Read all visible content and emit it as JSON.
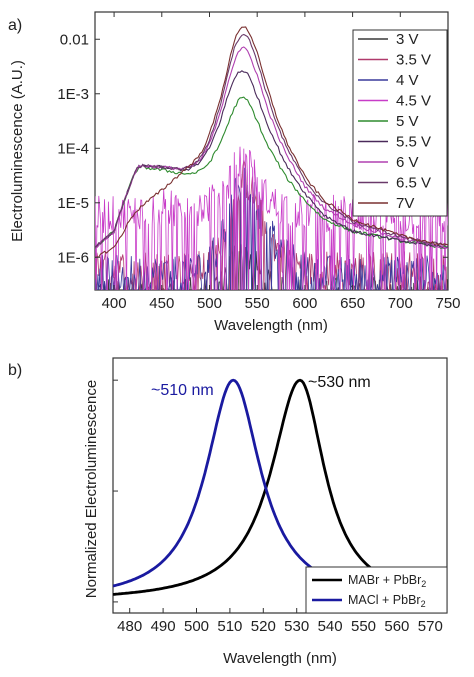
{
  "chart_data": [
    {
      "panel": "a)",
      "type": "line",
      "xlabel": "Wavelength (nm)",
      "ylabel": "Electroluminescence (A.U.)",
      "xlim": [
        380,
        750
      ],
      "yscale": "log",
      "ylim_log10": [
        -6.6,
        -1.5
      ],
      "x_ticks": [
        "400",
        "450",
        "500",
        "550",
        "600",
        "650",
        "700",
        "750"
      ],
      "y_ticks": [
        {
          "label": "0.01",
          "value": 0.01
        },
        {
          "label": "1E-3",
          "value": 0.001
        },
        {
          "label": "1E-4",
          "value": 0.0001
        },
        {
          "label": "1E-5",
          "value": 1e-05
        },
        {
          "label": "1E-6",
          "value": 1e-06
        }
      ],
      "legend_position": "top-right",
      "x": [
        380,
        400,
        410,
        420,
        425,
        430,
        450,
        470,
        480,
        490,
        500,
        510,
        520,
        525,
        530,
        535,
        540,
        545,
        550,
        560,
        570,
        580,
        600,
        620,
        650,
        700,
        750
      ],
      "series": [
        {
          "name": "3 V",
          "color": "#3a3a3a",
          "noisy": true,
          "noise_floor": 2e-07,
          "values": [
            2e-07,
            2e-07,
            2e-07,
            2e-07,
            2e-07,
            2e-07,
            2e-07,
            2e-07,
            2e-07,
            2e-07,
            2e-07,
            3e-07,
            6e-07,
            9e-07,
            1.3e-06,
            1.5e-06,
            1.3e-06,
            9e-07,
            6e-07,
            3e-07,
            2e-07,
            2e-07,
            2e-07,
            2e-07,
            2e-07,
            2e-07,
            2e-07
          ]
        },
        {
          "name": "3.5 V",
          "color": "#b03a6c",
          "noisy": true,
          "noise_floor": 6e-07,
          "values": [
            6e-07,
            6e-07,
            6e-07,
            6e-07,
            6e-07,
            6e-07,
            6e-07,
            6e-07,
            6e-07,
            6e-07,
            8e-07,
            1.5e-06,
            4e-06,
            1e-05,
            2.2e-05,
            3e-05,
            2.4e-05,
            1.5e-05,
            8e-06,
            3e-06,
            1.5e-06,
            1e-06,
            6e-07,
            6e-07,
            6e-07,
            6e-07,
            6e-07
          ]
        },
        {
          "name": "4 V",
          "color": "#3a3a9c",
          "noisy": true,
          "noise_floor": 5e-07,
          "values": [
            5e-07,
            5e-07,
            5e-07,
            5e-07,
            5e-07,
            5e-07,
            5e-07,
            5e-07,
            5e-07,
            6e-07,
            8e-07,
            1.6e-06,
            4.5e-06,
            1.1e-05,
            2.4e-05,
            3.2e-05,
            2.6e-05,
            1.6e-05,
            9e-06,
            3.2e-06,
            1.6e-06,
            1e-06,
            6e-07,
            5e-07,
            5e-07,
            5e-07,
            5e-07
          ]
        },
        {
          "name": "4.5 V",
          "color": "#c83cc8",
          "noisy": true,
          "noise_floor": 6e-06,
          "values": [
            6e-06,
            6e-06,
            6e-06,
            6.5e-06,
            7e-06,
            7.5e-06,
            8e-06,
            8e-06,
            8e-06,
            8.5e-06,
            9.5e-06,
            1.3e-05,
            2.4e-05,
            3.6e-05,
            5.2e-05,
            6e-05,
            5.2e-05,
            3.6e-05,
            2.3e-05,
            1.2e-05,
            9e-06,
            8e-06,
            7e-06,
            6.5e-06,
            6e-06,
            5.5e-06,
            5.5e-06
          ]
        },
        {
          "name": "5 V",
          "color": "#2e8b2e",
          "noisy": false,
          "values": [
            1.5e-06,
            3e-06,
            1e-05,
            3e-05,
            4.3e-05,
            4.5e-05,
            4e-05,
            3.5e-05,
            3.4e-05,
            3.8e-05,
            5.5e-05,
            0.00011,
            0.0003,
            0.0005,
            0.00075,
            0.00085,
            0.00075,
            0.0005,
            0.00032,
            0.00012,
            6e-05,
            3e-05,
            1.1e-05,
            5e-06,
            3e-06,
            2e-06,
            1.5e-06
          ]
        },
        {
          "name": "5.5 V",
          "color": "#4a2a5a",
          "noisy": false,
          "values": [
            1.5e-06,
            3e-06,
            1e-05,
            3e-05,
            4.5e-05,
            4.8e-05,
            4.5e-05,
            4.1e-05,
            4.2e-05,
            5.5e-05,
            0.0001,
            0.00027,
            0.001,
            0.0017,
            0.0025,
            0.0027,
            0.0023,
            0.0015,
            0.0009,
            0.0003,
            0.00012,
            5e-05,
            1.5e-05,
            6e-06,
            3e-06,
            2e-06,
            1.5e-06
          ]
        },
        {
          "name": "6 V",
          "color": "#b040b0",
          "noisy": false,
          "values": [
            1.5e-06,
            3e-06,
            1e-05,
            3e-05,
            4.5e-05,
            4.8e-05,
            4.5e-05,
            4.2e-05,
            4.5e-05,
            6e-05,
            0.00012,
            0.00037,
            0.0018,
            0.0035,
            0.006,
            0.007,
            0.006,
            0.0038,
            0.0022,
            0.0006,
            0.0002,
            8e-05,
            2e-05,
            8e-06,
            4e-06,
            2.2e-06,
            1.5e-06
          ]
        },
        {
          "name": "6.5 V",
          "color": "#6a3a6a",
          "noisy": false,
          "values": [
            1.5e-06,
            3e-06,
            1e-05,
            3e-05,
            4.5e-05,
            4.8e-05,
            4.5e-05,
            4.2e-05,
            4.6e-05,
            6.5e-05,
            0.00014,
            0.0005,
            0.0028,
            0.006,
            0.01,
            0.013,
            0.011,
            0.007,
            0.004,
            0.001,
            0.0003,
            0.00011,
            2.5e-05,
            1e-05,
            4.5e-06,
            2.4e-06,
            1.6e-06
          ]
        },
        {
          "name": "7V",
          "color": "#7a3030",
          "noisy": false,
          "values": [
            1e-06,
            1.5e-06,
            3e-06,
            6e-06,
            7.5e-06,
            9e-06,
            1.7e-05,
            3.5e-05,
            5e-05,
            7.5e-05,
            0.00018,
            0.00065,
            0.0035,
            0.008,
            0.014,
            0.018,
            0.015,
            0.01,
            0.0055,
            0.0014,
            0.0004,
            0.00014,
            3e-05,
            1.1e-05,
            5e-06,
            2.5e-06,
            1.6e-06
          ]
        }
      ]
    },
    {
      "panel": "b)",
      "type": "line",
      "xlabel": "Wavelength (nm)",
      "ylabel": "Normalized Electroluminescence",
      "xlim": [
        475,
        575
      ],
      "ylim": [
        -0.05,
        1.1
      ],
      "x_ticks": [
        "480",
        "490",
        "500",
        "510",
        "520",
        "530",
        "540",
        "550",
        "560",
        "570"
      ],
      "legend_position": "bottom-right",
      "annotations": [
        {
          "text": "~510 nm",
          "color": "#1a1aa0"
        },
        {
          "text": "~530 nm",
          "color": "#111111"
        }
      ],
      "series": [
        {
          "name": "MABr + PbBr",
          "name_subscript": "2",
          "color": "#000000",
          "peak": 531,
          "hwhm_left": 10.5,
          "hwhm_right": 9
        },
        {
          "name": "MACl + PbBr",
          "name_subscript": "2",
          "color": "#1a1aa0",
          "peak": 511,
          "hwhm_left": 10,
          "hwhm_right": 10
        }
      ]
    }
  ]
}
